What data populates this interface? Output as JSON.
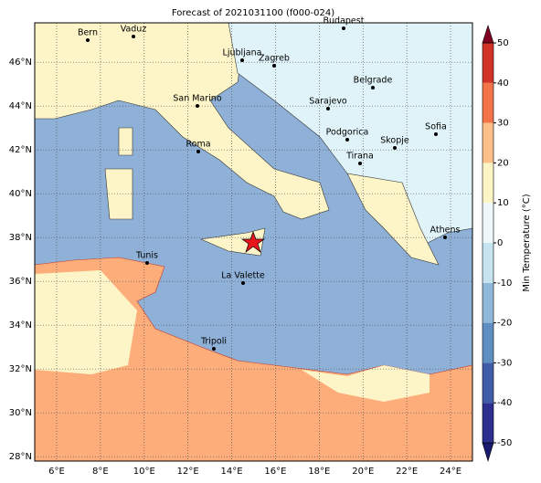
{
  "map": {
    "title": "Forecast of 2021031100 (f000-024)",
    "lonlim": [
      5,
      25
    ],
    "latlim": [
      27.8,
      47.8
    ],
    "lon_ticks": [
      {
        "value": 6,
        "label": "6°E"
      },
      {
        "value": 8,
        "label": "8°E"
      },
      {
        "value": 10,
        "label": "10°E"
      },
      {
        "value": 12,
        "label": "12°E"
      },
      {
        "value": 14,
        "label": "14°E"
      },
      {
        "value": 16,
        "label": "16°E"
      },
      {
        "value": 18,
        "label": "18°E"
      },
      {
        "value": 20,
        "label": "20°E"
      },
      {
        "value": 22,
        "label": "22°E"
      },
      {
        "value": 24,
        "label": "24°E"
      }
    ],
    "lat_ticks": [
      {
        "value": 28,
        "label": "28°N"
      },
      {
        "value": 30,
        "label": "30°N"
      },
      {
        "value": 32,
        "label": "32°N"
      },
      {
        "value": 34,
        "label": "34°N"
      },
      {
        "value": 36,
        "label": "36°N"
      },
      {
        "value": 38,
        "label": "38°N"
      },
      {
        "value": 40,
        "label": "40°N"
      },
      {
        "value": 42,
        "label": "42°N"
      },
      {
        "value": 44,
        "label": "44°N"
      },
      {
        "value": 46,
        "label": "46°N"
      }
    ],
    "cities": [
      "Bern",
      "Vaduz",
      "Budapest",
      "Ljubljana",
      "Zagreb",
      "Belgrade",
      "San Marino",
      "Sarajevo",
      "Sofia",
      "Podgorica",
      "Skopje",
      "Roma",
      "Tirana",
      "Athens",
      "Tunis",
      "La Valette",
      "Tripoli"
    ]
  },
  "colorbar": {
    "label": "Min Temperature (°C)",
    "lim": [
      -50,
      50
    ],
    "ticks": [
      -50,
      -40,
      -30,
      -20,
      -10,
      0,
      10,
      20,
      30,
      40,
      50
    ],
    "colors": [
      "#2c2f8f",
      "#3f5ca8",
      "#5f8fc2",
      "#8fb8da",
      "#c5e4ef",
      "#eef8fb",
      "#fdf5c6",
      "#fdbf88",
      "#f4744a",
      "#d23328",
      "#a50026"
    ],
    "extend_colors": [
      "#1a1a6e",
      "#800020"
    ]
  }
}
